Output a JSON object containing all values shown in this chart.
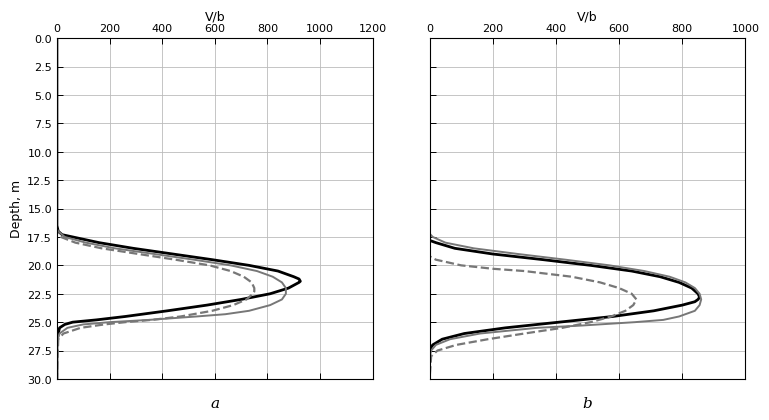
{
  "subplot_a": {
    "xlabel": "V/b",
    "xlim": [
      0,
      1200
    ],
    "xticks": [
      0,
      200,
      400,
      600,
      800,
      1000,
      1200
    ],
    "ylim": [
      30.0,
      0.0
    ],
    "yticks": [
      0.0,
      2.5,
      5.0,
      7.5,
      10.0,
      12.5,
      15.0,
      17.5,
      20.0,
      22.5,
      25.0,
      27.5,
      30.0
    ],
    "ylabel": "Depth, m",
    "label": "a",
    "curves": [
      {
        "color": "#000000",
        "linewidth": 2.0,
        "linestyle": "solid",
        "depth": [
          0.0,
          16.5,
          17.0,
          17.3,
          17.5,
          18.0,
          18.5,
          19.0,
          19.5,
          20.0,
          20.5,
          21.0,
          21.2,
          21.4,
          21.5,
          22.0,
          22.5,
          23.0,
          23.5,
          24.0,
          24.5,
          24.8,
          25.0,
          25.2,
          25.5,
          26.0,
          26.5,
          27.0,
          27.2,
          27.5,
          28.0,
          30.0
        ],
        "value": [
          0.0,
          0.0,
          5.0,
          20.0,
          60.0,
          160.0,
          290.0,
          440.0,
          590.0,
          730.0,
          840.0,
          900.0,
          920.0,
          925.0,
          920.0,
          880.0,
          810.0,
          700.0,
          570.0,
          420.0,
          260.0,
          150.0,
          60.0,
          30.0,
          10.0,
          5.0,
          2.0,
          1.0,
          0.0,
          0.0,
          0.0,
          0.0
        ]
      },
      {
        "color": "#777777",
        "linewidth": 1.4,
        "linestyle": "solid",
        "depth": [
          0.0,
          16.8,
          17.0,
          17.5,
          18.0,
          18.5,
          19.0,
          19.5,
          20.0,
          20.5,
          21.0,
          21.5,
          22.0,
          22.5,
          23.0,
          23.5,
          24.0,
          24.3,
          24.5,
          24.8,
          25.0,
          25.2,
          25.5,
          26.0,
          26.5,
          27.0,
          28.0,
          30.0
        ],
        "value": [
          0.0,
          0.0,
          5.0,
          30.0,
          110.0,
          220.0,
          370.0,
          520.0,
          660.0,
          760.0,
          820.0,
          855.0,
          870.0,
          870.0,
          855.0,
          810.0,
          730.0,
          640.0,
          530.0,
          350.0,
          200.0,
          100.0,
          40.0,
          10.0,
          3.0,
          0.0,
          0.0,
          0.0
        ]
      },
      {
        "color": "#777777",
        "linewidth": 1.6,
        "linestyle": "dashed",
        "depth": [
          0.0,
          17.2,
          17.5,
          18.0,
          18.5,
          19.0,
          19.5,
          20.0,
          20.5,
          21.0,
          21.5,
          22.0,
          22.3,
          22.5,
          23.0,
          23.5,
          24.0,
          24.5,
          24.8,
          25.0,
          25.2,
          25.5,
          26.0,
          26.5,
          30.0
        ],
        "value": [
          0.0,
          0.0,
          15.0,
          70.0,
          170.0,
          310.0,
          450.0,
          580.0,
          660.0,
          710.0,
          740.0,
          750.0,
          750.0,
          745.0,
          720.0,
          670.0,
          590.0,
          470.0,
          360.0,
          260.0,
          180.0,
          90.0,
          25.0,
          5.0,
          0.0
        ]
      }
    ]
  },
  "subplot_b": {
    "xlabel": "V/b",
    "xlim": [
      0,
      1000
    ],
    "xticks": [
      0,
      200,
      400,
      600,
      800,
      1000
    ],
    "ylim": [
      30.0,
      0.0
    ],
    "yticks": [
      0.0,
      2.5,
      5.0,
      7.5,
      10.0,
      12.5,
      15.0,
      17.5,
      20.0,
      22.5,
      25.0,
      27.5,
      30.0
    ],
    "label": "b",
    "curves": [
      {
        "color": "#000000",
        "linewidth": 2.0,
        "linestyle": "solid",
        "depth": [
          0.0,
          17.8,
          18.0,
          18.5,
          19.0,
          19.5,
          20.0,
          20.5,
          21.0,
          21.5,
          22.0,
          22.5,
          22.8,
          23.0,
          23.2,
          23.5,
          24.0,
          24.5,
          25.0,
          25.5,
          26.0,
          26.5,
          27.0,
          27.3,
          27.5,
          28.0,
          30.0
        ],
        "value": [
          0.0,
          0.0,
          20.0,
          80.0,
          200.0,
          360.0,
          510.0,
          640.0,
          730.0,
          790.0,
          830.0,
          850.0,
          855.0,
          850.0,
          840.0,
          800.0,
          710.0,
          580.0,
          410.0,
          240.0,
          110.0,
          40.0,
          10.0,
          3.0,
          1.0,
          0.0,
          0.0
        ]
      },
      {
        "color": "#777777",
        "linewidth": 1.4,
        "linestyle": "solid",
        "depth": [
          0.0,
          17.2,
          17.5,
          18.0,
          18.5,
          19.0,
          19.5,
          20.0,
          20.5,
          21.0,
          21.5,
          22.0,
          22.5,
          23.0,
          23.5,
          24.0,
          24.2,
          24.5,
          24.8,
          25.0,
          25.3,
          25.5,
          26.0,
          26.5,
          27.0,
          27.5,
          28.0,
          30.0
        ],
        "value": [
          0.0,
          0.0,
          10.0,
          50.0,
          140.0,
          280.0,
          430.0,
          570.0,
          680.0,
          760.0,
          810.0,
          840.0,
          855.0,
          860.0,
          855.0,
          840.0,
          820.0,
          790.0,
          740.0,
          650.0,
          480.0,
          340.0,
          160.0,
          65.0,
          20.0,
          5.0,
          0.0,
          0.0
        ]
      },
      {
        "color": "#777777",
        "linewidth": 1.6,
        "linestyle": "dashed",
        "depth": [
          0.0,
          19.2,
          19.5,
          20.0,
          20.3,
          20.5,
          21.0,
          21.5,
          22.0,
          22.5,
          23.0,
          23.5,
          24.0,
          24.5,
          25.0,
          25.5,
          26.0,
          26.5,
          27.0,
          27.5,
          28.0,
          30.0
        ],
        "value": [
          0.0,
          0.0,
          20.0,
          100.0,
          200.0,
          300.0,
          450.0,
          540.0,
          600.0,
          640.0,
          655.0,
          645.0,
          620.0,
          575.0,
          510.0,
          420.0,
          300.0,
          185.0,
          85.0,
          25.0,
          5.0,
          0.0
        ]
      }
    ]
  },
  "background_color": "#ffffff",
  "grid_color": "#bbbbbb",
  "fig_label_fontsize": 11
}
